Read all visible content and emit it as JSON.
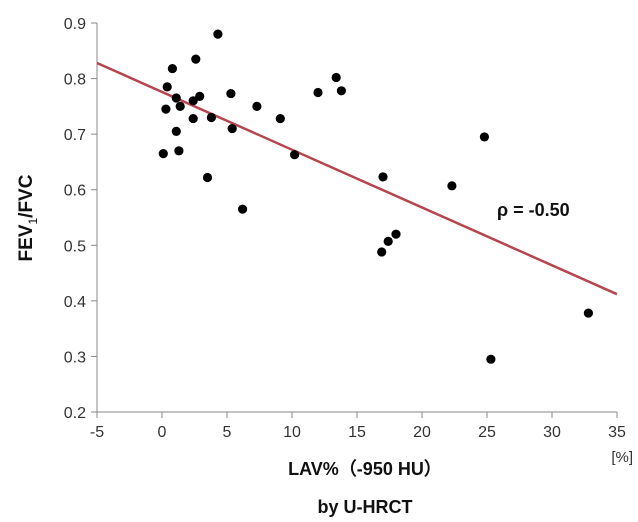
{
  "chart_data": {
    "type": "scatter",
    "title": "",
    "xlabel": "LAV%（-950 HU）",
    "xlabel_sub": "by U-HRCT",
    "x_unit": "[%]",
    "ylabel_main": "FEV",
    "ylabel_sub": "1",
    "ylabel_tail": "/FVC",
    "xlim": [
      -5,
      35
    ],
    "ylim": [
      0.2,
      0.9
    ],
    "xticks": [
      -5,
      0,
      5,
      10,
      15,
      20,
      25,
      30,
      35
    ],
    "yticks": [
      0.2,
      0.3,
      0.4,
      0.5,
      0.6,
      0.7,
      0.8,
      0.9
    ],
    "grid": false,
    "legend": "none",
    "annotation": "ρ = -0.50",
    "point_color": "#000000",
    "line_color": "#b5464f",
    "regression_line": {
      "x": [
        -5,
        35
      ],
      "y": [
        0.828,
        0.412
      ]
    },
    "points": [
      {
        "x": 0.1,
        "y": 0.665
      },
      {
        "x": 0.3,
        "y": 0.745
      },
      {
        "x": 0.4,
        "y": 0.785
      },
      {
        "x": 0.8,
        "y": 0.818
      },
      {
        "x": 1.1,
        "y": 0.765
      },
      {
        "x": 1.1,
        "y": 0.705
      },
      {
        "x": 1.3,
        "y": 0.67
      },
      {
        "x": 1.4,
        "y": 0.75
      },
      {
        "x": 2.4,
        "y": 0.76
      },
      {
        "x": 2.4,
        "y": 0.728
      },
      {
        "x": 2.6,
        "y": 0.835
      },
      {
        "x": 2.9,
        "y": 0.768
      },
      {
        "x": 3.5,
        "y": 0.622
      },
      {
        "x": 3.8,
        "y": 0.73
      },
      {
        "x": 4.3,
        "y": 0.88
      },
      {
        "x": 5.3,
        "y": 0.773
      },
      {
        "x": 5.4,
        "y": 0.71
      },
      {
        "x": 6.2,
        "y": 0.565
      },
      {
        "x": 7.3,
        "y": 0.75
      },
      {
        "x": 9.1,
        "y": 0.728
      },
      {
        "x": 10.2,
        "y": 0.663
      },
      {
        "x": 12.0,
        "y": 0.775
      },
      {
        "x": 13.4,
        "y": 0.802
      },
      {
        "x": 13.8,
        "y": 0.778
      },
      {
        "x": 16.9,
        "y": 0.488
      },
      {
        "x": 17.0,
        "y": 0.623
      },
      {
        "x": 17.4,
        "y": 0.507
      },
      {
        "x": 18.0,
        "y": 0.52
      },
      {
        "x": 22.3,
        "y": 0.607
      },
      {
        "x": 24.8,
        "y": 0.695
      },
      {
        "x": 25.3,
        "y": 0.295
      },
      {
        "x": 32.8,
        "y": 0.378
      }
    ]
  }
}
